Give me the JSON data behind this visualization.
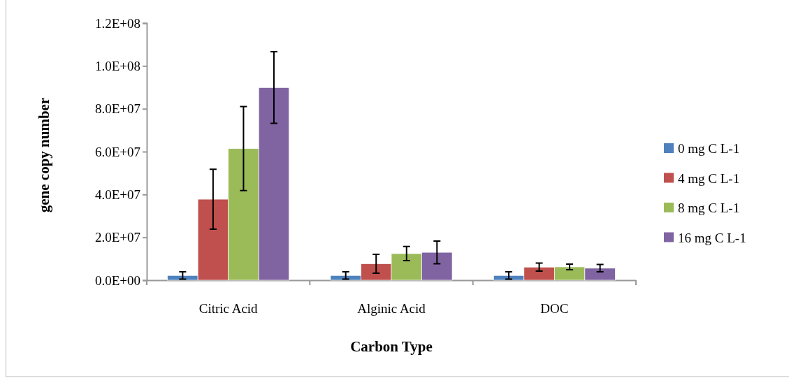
{
  "chart_data": {
    "type": "bar",
    "xlabel": "Carbon Type",
    "ylabel": "gene copy number",
    "categories": [
      "Citric Acid",
      "Alginic Acid",
      "DOC"
    ],
    "series": [
      {
        "name": "0 mg C L-1",
        "color": "#4f81bd",
        "values": [
          2200000,
          2200000,
          2200000
        ],
        "errors": [
          1700000,
          1700000,
          1700000
        ]
      },
      {
        "name": "4 mg C L-1",
        "color": "#c0504d",
        "values": [
          37800000,
          7700000,
          6100000
        ],
        "errors": [
          14000000,
          4400000,
          1900000
        ]
      },
      {
        "name": "8 mg C L-1",
        "color": "#9bbb59",
        "values": [
          61400000,
          12400000,
          6200000
        ],
        "errors": [
          19600000,
          3300000,
          1300000
        ]
      },
      {
        "name": "16 mg C L-1",
        "color": "#8064a2",
        "values": [
          89900000,
          13000000,
          5600000
        ],
        "errors": [
          16700000,
          5300000,
          1700000
        ]
      }
    ],
    "ylim": [
      0,
      120000000
    ],
    "yticks": [
      {
        "value": 0,
        "label": "0.0E+00"
      },
      {
        "value": 20000000,
        "label": "2.0E+07"
      },
      {
        "value": 40000000,
        "label": "4.0E+07"
      },
      {
        "value": 60000000,
        "label": "6.0E+07"
      },
      {
        "value": 80000000,
        "label": "8.0E+07"
      },
      {
        "value": 100000000,
        "label": "1.0E+08"
      },
      {
        "value": 120000000,
        "label": "1.2E+08"
      }
    ],
    "grid": false,
    "legend": "right"
  }
}
